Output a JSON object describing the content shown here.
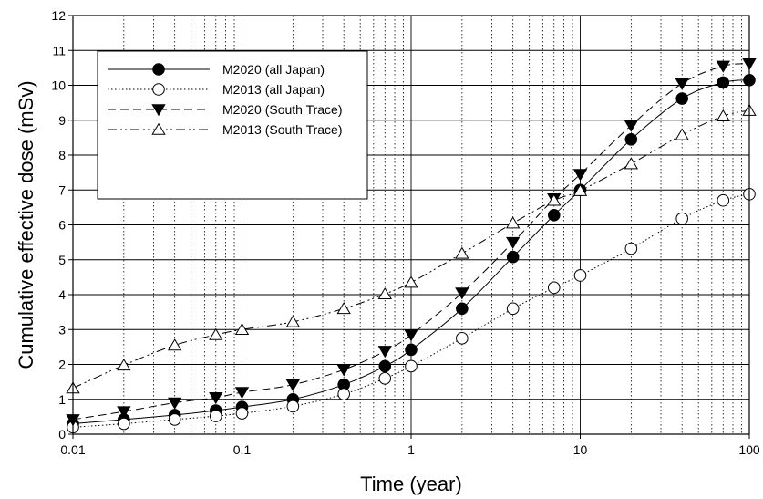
{
  "chart_data": {
    "type": "line",
    "xlabel": "Time (year)",
    "ylabel": "Cumulative effective dose (mSv)",
    "x_scale": "log",
    "xlim": [
      0.01,
      100
    ],
    "ylim": [
      0,
      12
    ],
    "x_ticks": [
      "0.01",
      "0.1",
      "1",
      "10",
      "100"
    ],
    "y_ticks": [
      "0",
      "1",
      "2",
      "3",
      "4",
      "5",
      "6",
      "7",
      "8",
      "9",
      "10",
      "11",
      "12"
    ],
    "grid": true,
    "legend_position": "top-left",
    "series": [
      {
        "name": "M2020 (all Japan)",
        "marker": "filled-circle",
        "line": "solid",
        "x": [
          0.01,
          0.02,
          0.04,
          0.07,
          0.1,
          0.2,
          0.4,
          0.7,
          1,
          2,
          4,
          7,
          10,
          20,
          40,
          70,
          100
        ],
        "y": [
          0.3,
          0.42,
          0.55,
          0.68,
          0.78,
          1.0,
          1.42,
          1.95,
          2.42,
          3.6,
          5.08,
          6.28,
          7.0,
          8.45,
          9.62,
          10.08,
          10.15
        ]
      },
      {
        "name": "M2013 (all Japan)",
        "marker": "open-circle",
        "line": "dotted",
        "x": [
          0.01,
          0.02,
          0.04,
          0.07,
          0.1,
          0.2,
          0.4,
          0.7,
          1,
          2,
          4,
          7,
          10,
          20,
          40,
          70,
          100
        ],
        "y": [
          0.2,
          0.3,
          0.42,
          0.52,
          0.6,
          0.8,
          1.15,
          1.6,
          1.95,
          2.75,
          3.6,
          4.2,
          4.55,
          5.32,
          6.18,
          6.7,
          6.88
        ]
      },
      {
        "name": "M2020 (South Trace)",
        "marker": "filled-triangle-down",
        "line": "dashed",
        "x": [
          0.01,
          0.02,
          0.04,
          0.07,
          0.1,
          0.2,
          0.4,
          0.7,
          1,
          2,
          4,
          7,
          10,
          20,
          40,
          70,
          100
        ],
        "y": [
          0.42,
          0.65,
          0.9,
          1.05,
          1.2,
          1.42,
          1.85,
          2.38,
          2.85,
          4.05,
          5.5,
          6.75,
          7.45,
          8.85,
          10.05,
          10.55,
          10.62
        ]
      },
      {
        "name": "M2013 (South Trace)",
        "marker": "open-triangle-up",
        "line": "dash-dot-dot",
        "x": [
          0.01,
          0.02,
          0.04,
          0.07,
          0.1,
          0.2,
          0.4,
          0.7,
          1,
          2,
          4,
          7,
          10,
          20,
          40,
          70,
          100
        ],
        "y": [
          1.32,
          1.98,
          2.55,
          2.85,
          3.0,
          3.22,
          3.6,
          4.02,
          4.35,
          5.18,
          6.05,
          6.7,
          6.98,
          7.75,
          8.58,
          9.12,
          9.28
        ]
      }
    ]
  }
}
